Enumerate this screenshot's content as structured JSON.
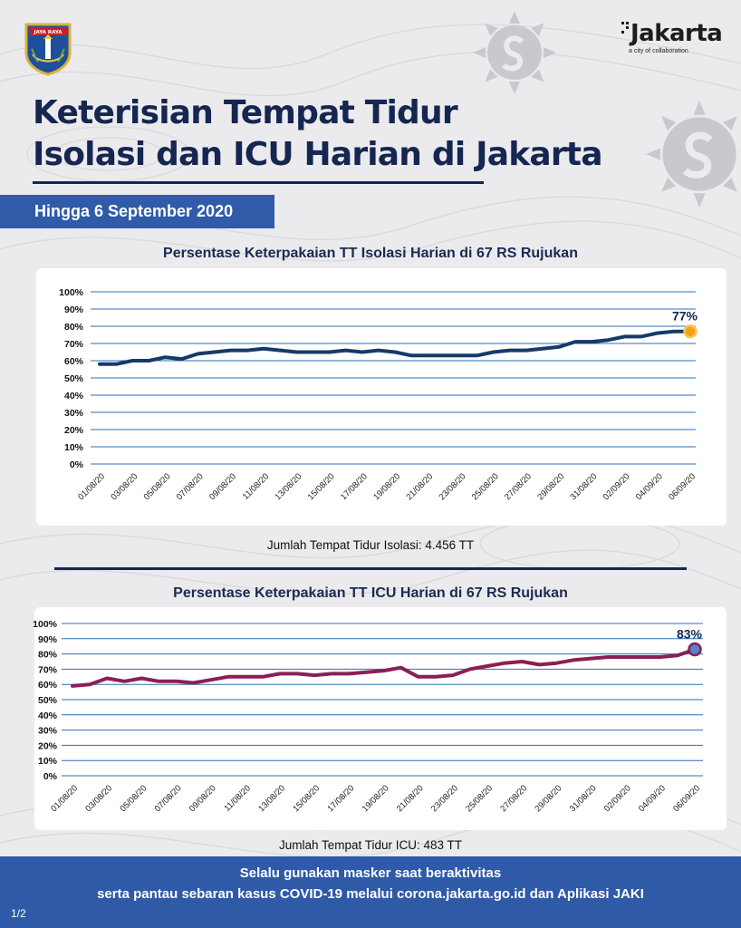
{
  "header": {
    "emblem_text": "JAYA RAYA",
    "logo_word": "Jakarta",
    "logo_tagline": "a city of collaboration",
    "title_line1": "Keterisian Tempat Tidur",
    "title_line2": "Isolasi dan ICU Harian di Jakarta",
    "date_badge": "Hingga 6 September 2020"
  },
  "colors": {
    "navy": "#152651",
    "blue": "#2e5aa7",
    "isolation_line": "#163a68",
    "icu_line": "#8b1f55",
    "grid": "#2b6fb8",
    "marker_orange": "#f4a01b",
    "marker_blue": "#4f87c9"
  },
  "charts": [
    {
      "title": "Persentase Keterpakaian TT Isolasi Harian di 67 RS Rujukan",
      "caption": "Jumlah Tempat Tidur Isolasi: 4.456 TT",
      "last_label": "77%"
    },
    {
      "title": "Persentase Keterpakaian TT ICU Harian di 67 RS Rujukan",
      "caption": "Jumlah Tempat Tidur ICU: 483 TT",
      "last_label": "83%"
    }
  ],
  "chart_data": [
    {
      "type": "line",
      "title": "Persentase Keterpakaian TT Isolasi Harian di 67 RS Rujukan",
      "xlabel": "",
      "ylabel": "",
      "ylim": [
        0,
        100
      ],
      "y_ticks": [
        "0%",
        "10%",
        "20%",
        "30%",
        "40%",
        "50%",
        "60%",
        "70%",
        "80%",
        "90%",
        "100%"
      ],
      "x_tick_labels": [
        "01/08/20",
        "03/08/20",
        "05/08/20",
        "07/08/20",
        "09/08/20",
        "11/08/20",
        "13/08/20",
        "15/08/20",
        "17/08/20",
        "19/08/20",
        "21/08/20",
        "23/08/20",
        "25/08/20",
        "27/08/20",
        "29/08/20",
        "31/08/20",
        "02/09/20",
        "04/09/20",
        "06/09/20"
      ],
      "series": [
        {
          "name": "Isolasi",
          "values": [
            58,
            58,
            60,
            60,
            62,
            61,
            64,
            65,
            66,
            66,
            67,
            66,
            65,
            65,
            65,
            66,
            65,
            66,
            65,
            63,
            63,
            63,
            63,
            63,
            65,
            66,
            66,
            67,
            68,
            71,
            71,
            72,
            74,
            74,
            76,
            77,
            77
          ]
        }
      ],
      "annotations": [
        {
          "x_index": 36,
          "text": "77%"
        }
      ]
    },
    {
      "type": "line",
      "title": "Persentase Keterpakaian TT ICU Harian di 67 RS Rujukan",
      "xlabel": "",
      "ylabel": "",
      "ylim": [
        0,
        100
      ],
      "y_ticks": [
        "0%",
        "10%",
        "20%",
        "30%",
        "40%",
        "50%",
        "60%",
        "70%",
        "80%",
        "90%",
        "100%"
      ],
      "x_tick_labels": [
        "01/08/20",
        "03/08/20",
        "05/08/20",
        "07/08/20",
        "09/08/20",
        "11/08/20",
        "13/08/20",
        "15/08/20",
        "17/08/20",
        "19/08/20",
        "21/08/20",
        "23/08/20",
        "25/08/20",
        "27/08/20",
        "29/08/20",
        "31/08/20",
        "02/09/20",
        "04/09/20",
        "06/09/20"
      ],
      "series": [
        {
          "name": "ICU",
          "values": [
            59,
            60,
            64,
            62,
            64,
            62,
            62,
            61,
            63,
            65,
            65,
            65,
            67,
            67,
            66,
            67,
            67,
            68,
            69,
            71,
            65,
            65,
            66,
            70,
            72,
            74,
            75,
            73,
            74,
            76,
            77,
            78,
            78,
            78,
            78,
            79,
            83
          ]
        }
      ],
      "annotations": [
        {
          "x_index": 36,
          "text": "83%"
        }
      ]
    }
  ],
  "footer": {
    "line1": "Selalu gunakan masker saat beraktivitas",
    "line2": "serta pantau sebaran kasus COVID-19 melalui corona.jakarta.go.id dan Aplikasi JAKI",
    "page": "1/2"
  }
}
